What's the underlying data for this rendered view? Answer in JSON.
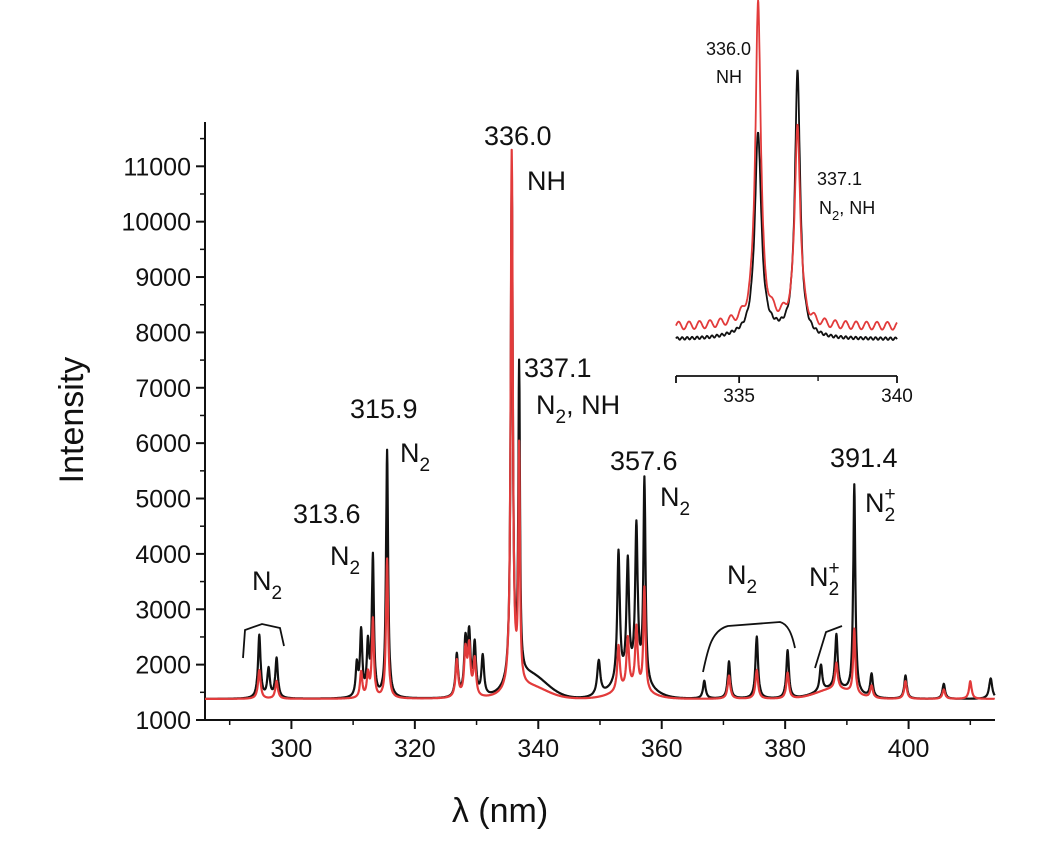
{
  "chart_data": {
    "type": "line",
    "xlabel": "λ (nm)",
    "ylabel": "Intensity",
    "xlim": [
      286,
      414
    ],
    "ylim": [
      1000,
      11800
    ],
    "x_ticks": [
      "300",
      "320",
      "340",
      "360",
      "380",
      "400"
    ],
    "y_ticks": [
      "1000",
      "2000",
      "3000",
      "4000",
      "5000",
      "6000",
      "7000",
      "8000",
      "9000",
      "10000",
      "11000"
    ],
    "colors": {
      "black": "#111111",
      "red": "#e23b3b"
    },
    "series": [
      {
        "color": "#111111",
        "peaks": [
          {
            "x": 294.8,
            "y": 2520,
            "w": 0.25
          },
          {
            "x": 296.3,
            "y": 1900,
            "w": 0.25
          },
          {
            "x": 297.6,
            "y": 2100,
            "w": 0.25
          },
          {
            "x": 310.6,
            "y": 1950,
            "w": 0.22
          },
          {
            "x": 311.3,
            "y": 2550,
            "w": 0.22
          },
          {
            "x": 312.4,
            "y": 2300,
            "w": 0.22
          },
          {
            "x": 313.2,
            "y": 3900,
            "w": 0.2
          },
          {
            "x": 315.5,
            "y": 5850,
            "w": 0.2
          },
          {
            "x": 326.8,
            "y": 2150,
            "w": 0.25
          },
          {
            "x": 328.2,
            "y": 2350,
            "w": 0.25
          },
          {
            "x": 328.8,
            "y": 2450,
            "w": 0.25
          },
          {
            "x": 329.7,
            "y": 2300,
            "w": 0.25
          },
          {
            "x": 331.0,
            "y": 2100,
            "w": 0.25
          },
          {
            "x": 335.7,
            "y": 10400,
            "w": 0.2
          },
          {
            "x": 336.9,
            "y": 6900,
            "w": 0.15
          },
          {
            "x": 349.8,
            "y": 2000,
            "w": 0.3
          },
          {
            "x": 353.0,
            "y": 3750,
            "w": 0.25
          },
          {
            "x": 354.5,
            "y": 3500,
            "w": 0.25
          },
          {
            "x": 355.9,
            "y": 4150,
            "w": 0.25
          },
          {
            "x": 357.2,
            "y": 5050,
            "w": 0.2
          },
          {
            "x": 366.9,
            "y": 1700,
            "w": 0.25
          },
          {
            "x": 370.9,
            "y": 2050,
            "w": 0.25
          },
          {
            "x": 375.4,
            "y": 2500,
            "w": 0.25
          },
          {
            "x": 380.4,
            "y": 2250,
            "w": 0.25
          },
          {
            "x": 385.8,
            "y": 1850,
            "w": 0.25
          },
          {
            "x": 388.3,
            "y": 2350,
            "w": 0.25
          },
          {
            "x": 391.2,
            "y": 5150,
            "w": 0.2
          },
          {
            "x": 394.0,
            "y": 1800,
            "w": 0.25
          },
          {
            "x": 399.5,
            "y": 1800,
            "w": 0.25
          },
          {
            "x": 405.7,
            "y": 1650,
            "w": 0.25
          },
          {
            "x": 413.3,
            "y": 1750,
            "w": 0.3
          }
        ]
      },
      {
        "color": "#e23b3b",
        "peaks": [
          {
            "x": 294.8,
            "y": 1900,
            "w": 0.25
          },
          {
            "x": 297.6,
            "y": 1700,
            "w": 0.25
          },
          {
            "x": 311.3,
            "y": 1850,
            "w": 0.22
          },
          {
            "x": 312.4,
            "y": 1800,
            "w": 0.22
          },
          {
            "x": 313.2,
            "y": 2800,
            "w": 0.2
          },
          {
            "x": 315.5,
            "y": 3900,
            "w": 0.2
          },
          {
            "x": 326.8,
            "y": 2050,
            "w": 0.25
          },
          {
            "x": 328.2,
            "y": 2200,
            "w": 0.25
          },
          {
            "x": 328.8,
            "y": 2250,
            "w": 0.25
          },
          {
            "x": 329.7,
            "y": 2050,
            "w": 0.25
          },
          {
            "x": 335.7,
            "y": 11100,
            "w": 0.2
          },
          {
            "x": 336.9,
            "y": 5600,
            "w": 0.15
          },
          {
            "x": 353.0,
            "y": 2200,
            "w": 0.25
          },
          {
            "x": 354.5,
            "y": 2300,
            "w": 0.25
          },
          {
            "x": 355.9,
            "y": 2500,
            "w": 0.25
          },
          {
            "x": 357.2,
            "y": 3250,
            "w": 0.2
          },
          {
            "x": 370.9,
            "y": 1800,
            "w": 0.25
          },
          {
            "x": 375.4,
            "y": 1900,
            "w": 0.25
          },
          {
            "x": 380.4,
            "y": 1850,
            "w": 0.25
          },
          {
            "x": 388.3,
            "y": 1850,
            "w": 0.25
          },
          {
            "x": 391.2,
            "y": 2550,
            "w": 0.2
          },
          {
            "x": 394.0,
            "y": 1600,
            "w": 0.25
          },
          {
            "x": 399.5,
            "y": 1700,
            "w": 0.25
          },
          {
            "x": 405.7,
            "y": 1550,
            "w": 0.25
          },
          {
            "x": 410.0,
            "y": 1700,
            "w": 0.25
          }
        ]
      }
    ],
    "annotations": {
      "n2_band_1": {
        "main": "N",
        "sub": "2",
        "x": 296.0
      },
      "p3136": {
        "value": "313.6",
        "main": "N",
        "sub": "2"
      },
      "p3159": {
        "value": "315.9",
        "main": "N",
        "sub": "2"
      },
      "p3360": {
        "value": "336.0",
        "species": "NH"
      },
      "p3371": {
        "value": "337.1",
        "main": "N",
        "sub": "2",
        "tail": ", NH"
      },
      "p3576": {
        "value": "357.6",
        "main": "N",
        "sub": "2"
      },
      "n2_band_2": {
        "main": "N",
        "sub": "2"
      },
      "n2p_band": {
        "main": "N",
        "sub": "2",
        "sup": "+"
      },
      "p3914": {
        "value": "391.4",
        "main": "N",
        "sub": "2",
        "sup": "+"
      }
    },
    "inset": {
      "xlim": [
        333,
        340
      ],
      "x_ticks": [
        "335",
        "340"
      ],
      "series": [
        {
          "color": "#111111",
          "peaks": [
            {
              "x": 335.6,
              "y": 0.62,
              "w": 0.12
            },
            {
              "x": 336.85,
              "y": 0.82,
              "w": 0.1
            }
          ],
          "baseline": 0.04
        },
        {
          "color": "#e23b3b",
          "peaks": [
            {
              "x": 335.6,
              "y": 1.0,
              "w": 0.1
            },
            {
              "x": 336.85,
              "y": 0.62,
              "w": 0.1
            }
          ],
          "baseline": 0.08
        }
      ],
      "labels": {
        "l1": {
          "value": "336.0",
          "species": "NH"
        },
        "l2": {
          "value": "337.1",
          "main": "N",
          "sub": "2",
          "tail": ", NH"
        }
      }
    }
  }
}
